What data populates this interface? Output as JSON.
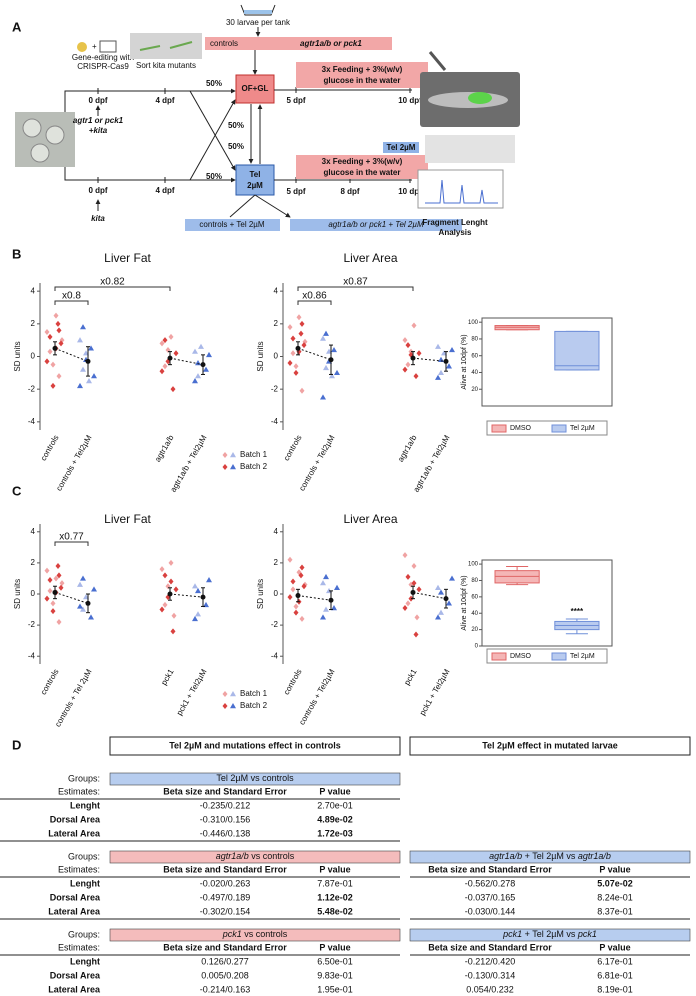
{
  "panel_a": {
    "label": "A",
    "tank": "30 larvae per tank",
    "treatments": [
      "controls",
      "agtr1a/b or pck1"
    ],
    "gene_editing": [
      "Gene-editing with",
      "CRISPR-Cas9"
    ],
    "sort": "Sort kita mutants",
    "of_gl": "OF+GL",
    "tel_box": [
      "Tel",
      "2µM"
    ],
    "tel_tag": "Tel 2µM",
    "pct": [
      "50%",
      "50%",
      "50%",
      "50%"
    ],
    "top_line": {
      "dpf": [
        "0 dpf",
        "4 dpf"
      ],
      "genotype": [
        "agtr1 or pck1",
        "+kita"
      ]
    },
    "bottom_line": {
      "dpf": [
        "0 dpf",
        "4 dpf"
      ],
      "genotype": [
        "kita"
      ]
    },
    "feeding_top": {
      "text": [
        "3x Feeding + 3%(w/v)",
        "glucose in the water"
      ],
      "dpf": [
        "5 dpf",
        "10 dpf"
      ]
    },
    "feeding_bottom": {
      "text": [
        "3x Feeding + 3%(w/v)",
        "glucose in the water"
      ],
      "dpf": [
        "5 dpf",
        "8 dpf",
        "10 dpf"
      ]
    },
    "bottom_boxes": [
      "controls + Tel 2µM",
      "agtr1a/b or pck1 + Tel 2µM"
    ],
    "analysis": [
      "Fragment Lenght",
      "Analysis"
    ]
  },
  "panel_b": {
    "label": "B",
    "plots": [
      {
        "title": "Liver Fat",
        "ylabel": "SD units",
        "ylim": [
          -4.5,
          4.5
        ],
        "yticks": [
          -4,
          -2,
          0,
          2,
          4
        ],
        "brackets": [
          "x0.8",
          "x0.82"
        ],
        "groups": [
          {
            "label": "controls",
            "color": "#d9413f",
            "color_light": "#f0a3a3",
            "marker": "diamond",
            "batch1": [
              1.5,
              0.3,
              -0.5,
              2.5,
              -1.2,
              1.0
            ],
            "batch2": [
              2.0,
              0.8,
              -0.3,
              1.2,
              -1.8,
              0.5,
              1.6
            ],
            "mean": 0.5,
            "ci": [
              0.1,
              0.9
            ]
          },
          {
            "label": "controls + Tel2µM",
            "color": "#4a6fd0",
            "color_light": "#a9b8e8",
            "marker": "triangle",
            "batch1": [
              1.0,
              -0.8,
              0.2,
              -1.5
            ],
            "batch2": [
              0.5,
              -1.2,
              -1.8,
              1.8,
              -0.2
            ],
            "mean": -0.3,
            "ci": [
              -1.2,
              0.6
            ]
          },
          {
            "label": "agtr1a/b",
            "color": "#d9413f",
            "color_light": "#f0a3a3",
            "marker": "diamond",
            "batch1": [
              0.8,
              -0.6,
              0.4,
              1.2
            ],
            "batch2": [
              -2.0,
              0.2,
              -0.9,
              1.0,
              -0.3
            ],
            "mean": -0.1,
            "ci": [
              -0.5,
              0.3
            ]
          },
          {
            "label": "agtr1a/b + Tel2µM",
            "color": "#4a6fd0",
            "color_light": "#a9b8e8",
            "marker": "triangle",
            "batch1": [
              0.3,
              -1.2,
              0.6
            ],
            "batch2": [
              -0.8,
              0.1,
              -1.5,
              -0.4
            ],
            "mean": -0.5,
            "ci": [
              -1.1,
              0.1
            ]
          }
        ]
      },
      {
        "title": "Liver Area",
        "ylabel": "SD units",
        "ylim": [
          -4.5,
          4.5
        ],
        "yticks": [
          -4,
          -2,
          0,
          2,
          4
        ],
        "brackets": [
          "x0.86",
          "x0.87"
        ],
        "groups": [
          {
            "label": "controls",
            "color": "#d9413f",
            "color_light": "#f0a3a3",
            "marker": "diamond",
            "batch1": [
              1.8,
              0.2,
              -0.6,
              2.4,
              -2.1,
              0.9
            ],
            "batch2": [
              1.4,
              0.7,
              -0.4,
              1.1,
              -1.0,
              0.3,
              2.0
            ],
            "mean": 0.5,
            "ci": [
              0.1,
              0.9
            ]
          },
          {
            "label": "controls + Tel2µM",
            "color": "#4a6fd0",
            "color_light": "#a9b8e8",
            "marker": "triangle",
            "batch1": [
              1.1,
              -0.7,
              0.3,
              -1.2
            ],
            "batch2": [
              0.4,
              -1.0,
              -2.5,
              1.4,
              -0.3
            ],
            "mean": -0.2,
            "ci": [
              -1.1,
              0.7
            ]
          },
          {
            "label": "agtr1a/b",
            "color": "#d9413f",
            "color_light": "#f0a3a3",
            "marker": "diamond",
            "batch1": [
              1.0,
              -0.5,
              0.3,
              1.9
            ],
            "batch2": [
              -1.2,
              0.2,
              -0.8,
              0.7,
              0.1
            ],
            "mean": -0.1,
            "ci": [
              -0.5,
              0.3
            ]
          },
          {
            "label": "agtr1a/b + Tel2µM",
            "color": "#4a6fd0",
            "color_light": "#a9b8e8",
            "marker": "triangle",
            "batch1": [
              0.6,
              -1.0,
              0.2
            ],
            "batch2": [
              -0.6,
              0.4,
              -1.3,
              -0.2
            ],
            "mean": -0.3,
            "ci": [
              -0.9,
              0.3
            ]
          }
        ]
      }
    ],
    "legend": [
      "Batch 1",
      "Batch 2"
    ],
    "survival": {
      "ylabel": "Alive at 10dpf (%)",
      "ylim": [
        0,
        105
      ],
      "yticks": [
        20,
        40,
        60,
        80,
        100
      ],
      "annotation": null,
      "boxes": [
        {
          "name": "DMSO",
          "color": "#e06666",
          "fill": "#f4b6b6",
          "whislo": 91,
          "q1": 91,
          "med": 94,
          "q3": 96,
          "whishi": 96
        },
        {
          "name": "Tel 2µM",
          "color": "#6f8fd8",
          "fill": "#b9cbef",
          "whislo": 43,
          "q1": 43,
          "med": 48,
          "q3": 89,
          "whishi": 89
        }
      ]
    }
  },
  "panel_c": {
    "label": "C",
    "plots": [
      {
        "title": "Liver Fat",
        "ylabel": "SD units",
        "ylim": [
          -4.5,
          4.5
        ],
        "yticks": [
          -4,
          -2,
          0,
          2,
          4
        ],
        "brackets": [
          "x0.77"
        ],
        "groups": [
          {
            "label": "controls",
            "color": "#d9413f",
            "color_light": "#f0a3a3",
            "marker": "diamond",
            "batch1": [
              1.5,
              0.2,
              -0.6,
              1.0,
              -1.8,
              0.7
            ],
            "batch2": [
              1.8,
              0.4,
              -0.3,
              0.9,
              -1.1,
              0.1,
              1.2
            ],
            "mean": 0.1,
            "ci": [
              -0.3,
              0.5
            ]
          },
          {
            "label": "controls + Tel 2µM",
            "color": "#4a6fd0",
            "color_light": "#a9b8e8",
            "marker": "triangle",
            "batch1": [
              0.6,
              -1.0,
              -0.2
            ],
            "batch2": [
              -1.5,
              0.3,
              -0.8,
              1.0
            ],
            "mean": -0.6,
            "ci": [
              -1.2,
              0.0
            ]
          },
          {
            "label": "pck1",
            "color": "#d9413f",
            "color_light": "#f0a3a3",
            "marker": "diamond",
            "batch1": [
              1.6,
              -0.7,
              0.5,
              2.0,
              -1.4
            ],
            "batch2": [
              -2.4,
              0.3,
              -1.0,
              1.2,
              -0.2,
              0.8
            ],
            "mean": 0.0,
            "ci": [
              -0.4,
              0.4
            ]
          },
          {
            "label": "pck1 + Tel2µM",
            "color": "#4a6fd0",
            "color_light": "#a9b8e8",
            "marker": "triangle",
            "batch1": [
              0.5,
              -1.3
            ],
            "batch2": [
              -0.7,
              0.9,
              -1.6,
              0.2
            ],
            "mean": -0.2,
            "ci": [
              -0.8,
              0.4
            ]
          }
        ]
      },
      {
        "title": "Liver Area",
        "ylabel": "SD units",
        "ylim": [
          -4.5,
          4.5
        ],
        "yticks": [
          -4,
          -2,
          0,
          2,
          4
        ],
        "brackets": [],
        "groups": [
          {
            "label": "controls",
            "color": "#d9413f",
            "color_light": "#f0a3a3",
            "marker": "diamond",
            "batch1": [
              2.2,
              0.3,
              -0.8,
              1.4,
              -1.6,
              0.6
            ],
            "batch2": [
              1.2,
              0.5,
              -0.2,
              0.8,
              -1.2,
              -0.5,
              1.7
            ],
            "mean": -0.1,
            "ci": [
              -0.5,
              0.3
            ]
          },
          {
            "label": "controls + Tel2µM",
            "color": "#4a6fd0",
            "color_light": "#a9b8e8",
            "marker": "triangle",
            "batch1": [
              0.7,
              -1.0,
              0.2
            ],
            "batch2": [
              -0.9,
              0.4,
              -1.5,
              1.1
            ],
            "mean": -0.4,
            "ci": [
              -1.0,
              0.2
            ]
          },
          {
            "label": "pck1",
            "color": "#d9413f",
            "color_light": "#f0a3a3",
            "marker": "diamond",
            "batch1": [
              2.5,
              -0.6,
              0.6,
              1.8,
              -1.5
            ],
            "batch2": [
              -2.6,
              0.3,
              -0.9,
              1.1,
              -0.3,
              0.7
            ],
            "mean": 0.1,
            "ci": [
              -0.3,
              0.5
            ]
          },
          {
            "label": "pck1 + Tel2µM",
            "color": "#4a6fd0",
            "color_light": "#a9b8e8",
            "marker": "triangle",
            "batch1": [
              0.4,
              -1.2
            ],
            "batch2": [
              -0.6,
              1.0,
              -1.5,
              0.1
            ],
            "mean": -0.3,
            "ci": [
              -0.9,
              0.3
            ]
          }
        ]
      }
    ],
    "legend": [
      "Batch 1",
      "Batch 2"
    ],
    "survival": {
      "ylabel": "Alive at 10dpf (%)",
      "ylim": [
        0,
        105
      ],
      "yticks": [
        0,
        20,
        40,
        60,
        80,
        100
      ],
      "annotation": "****",
      "boxes": [
        {
          "name": "DMSO",
          "color": "#e06666",
          "fill": "#f4b6b6",
          "whislo": 75,
          "q1": 77,
          "med": 85,
          "q3": 92,
          "whishi": 97
        },
        {
          "name": "Tel 2µM",
          "color": "#6f8fd8",
          "fill": "#b9cbef",
          "whislo": 15,
          "q1": 20,
          "med": 25,
          "q3": 30,
          "whishi": 33
        }
      ]
    }
  },
  "panel_d": {
    "label": "D",
    "headers": [
      "Tel 2µM and mutations effect in controls",
      "Tel 2µM effect in mutated larvae"
    ],
    "groups_label": "Groups:",
    "estimates_label": "Estimates:",
    "columns": [
      "Beta size and Standard Error",
      "P value"
    ],
    "tables": [
      {
        "side": "left",
        "row": 0,
        "color": "#b7cdef",
        "header": [
          {
            "text": "Tel 2µM vs controls",
            "italic": false
          }
        ],
        "rows": [
          {
            "label": "Lenght",
            "estimate": "-0.235/0.212",
            "p": "2.70e-01",
            "bold": false
          },
          {
            "label": "Dorsal Area",
            "estimate": "-0.310/0.156",
            "p": "4.89e-02",
            "bold": true
          },
          {
            "label": "Lateral Area",
            "estimate": "-0.446/0.138",
            "p": "1.72e-03",
            "bold": true
          }
        ]
      },
      {
        "side": "left",
        "row": 1,
        "color": "#f4bcbc",
        "header": [
          {
            "text": "agtr1a/b",
            "italic": true
          },
          {
            "text": " vs controls",
            "italic": false
          }
        ],
        "rows": [
          {
            "label": "Lenght",
            "estimate": "-0.020/0.263",
            "p": "7.87e-01",
            "bold": false
          },
          {
            "label": "Dorsal Area",
            "estimate": "-0.497/0.189",
            "p": "1.12e-02",
            "bold": true
          },
          {
            "label": "Lateral Area",
            "estimate": "-0.302/0.154",
            "p": "5.48e-02",
            "bold": true
          }
        ]
      },
      {
        "side": "right",
        "row": 1,
        "color": "#b7cdef",
        "header": [
          {
            "text": "agtr1a/b",
            "italic": true
          },
          {
            "text": " + Tel 2µM vs ",
            "italic": false
          },
          {
            "text": "agtr1a/b",
            "italic": true
          }
        ],
        "rows": [
          {
            "label": "Lenght",
            "estimate": "-0.562/0.278",
            "p": "5.07e-02",
            "bold": true
          },
          {
            "label": "Dorsal Area",
            "estimate": "-0.037/0.165",
            "p": "8.24e-01",
            "bold": false
          },
          {
            "label": "Lateral Area",
            "estimate": "-0.030/0.144",
            "p": "8.37e-01",
            "bold": false
          }
        ]
      },
      {
        "side": "left",
        "row": 2,
        "color": "#f4bcbc",
        "header": [
          {
            "text": "pck1",
            "italic": true
          },
          {
            "text": " vs controls",
            "italic": false
          }
        ],
        "rows": [
          {
            "label": "Lenght",
            "estimate": "0.126/0.277",
            "p": "6.50e-01",
            "bold": false
          },
          {
            "label": "Dorsal Area",
            "estimate": "0.005/0.208",
            "p": "9.83e-01",
            "bold": false
          },
          {
            "label": "Lateral Area",
            "estimate": "-0.214/0.163",
            "p": "1.95e-01",
            "bold": false
          }
        ]
      },
      {
        "side": "right",
        "row": 2,
        "color": "#b7cdef",
        "header": [
          {
            "text": "pck1",
            "italic": true
          },
          {
            "text": " + Tel 2µM vs ",
            "italic": false
          },
          {
            "text": "pck1",
            "italic": true
          }
        ],
        "rows": [
          {
            "label": "Lenght",
            "estimate": "-0.212/0.420",
            "p": "6.17e-01",
            "bold": false
          },
          {
            "label": "Dorsal Area",
            "estimate": "-0.130/0.314",
            "p": "6.81e-01",
            "bold": false
          },
          {
            "label": "Lateral Area",
            "estimate": "0.054/0.232",
            "p": "8.19e-01",
            "bold": false
          }
        ]
      }
    ]
  }
}
